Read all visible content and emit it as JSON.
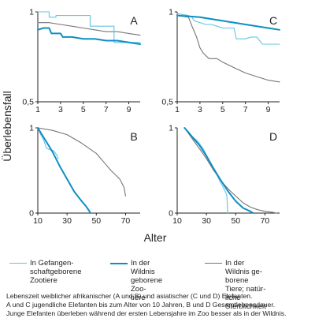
{
  "figure": {
    "ylabel": "Überlebensfall",
    "xlabel": "Alter",
    "colors": {
      "zoo": "#5fc6e3",
      "wild": "#0f8ec4",
      "wild_natural": "#767676",
      "axis": "#222222"
    }
  },
  "legend": [
    {
      "label": "In Gefangen-\nschaftgeborene\nZootiere",
      "color": "#5fc6e3",
      "width": 1
    },
    {
      "label": "In der Wildnis\ngeborene Zoo-\ntiere",
      "color": "#0f8ec4",
      "width": 2
    },
    {
      "label": "In der Wildnis ge-\nborene Tiere; natür-\nliche Sterblichkeit",
      "color": "#767676",
      "width": 1
    }
  ],
  "caption": [
    "Lebenszeit weiblicher afrikanischer (A und B) und asiatischer (C und D) Elefanten.",
    "A und C jugendliche Elefanten bis zum Alter von 10 Jahren, B und D Gesamtlebensdauer.",
    "Junge Elefanten überleben während der ersten Lebensjahre im Zoo besser als in der Wildnis."
  ],
  "chart_data": [
    {
      "panel": "A",
      "type": "line",
      "xlim": [
        1,
        10
      ],
      "ylim": [
        0.5,
        1
      ],
      "xticks": [
        "1",
        "3",
        "5",
        "7",
        "9"
      ],
      "yticks": [
        "0,5",
        "1"
      ],
      "series": [
        {
          "key": "zoo",
          "points": [
            [
              1,
              1
            ],
            [
              2,
              1
            ],
            [
              2,
              0.97
            ],
            [
              2.6,
              0.97
            ],
            [
              2.6,
              0.98
            ],
            [
              5.6,
              0.98
            ],
            [
              5.6,
              0.92
            ],
            [
              7.7,
              0.92
            ],
            [
              7.7,
              0.83
            ],
            [
              10,
              0.83
            ]
          ]
        },
        {
          "key": "wild",
          "points": [
            [
              1,
              0.9
            ],
            [
              1.5,
              0.91
            ],
            [
              2,
              0.91
            ],
            [
              2.2,
              0.88
            ],
            [
              3,
              0.88
            ],
            [
              3.2,
              0.86
            ],
            [
              4,
              0.86
            ],
            [
              5,
              0.85
            ],
            [
              6,
              0.85
            ],
            [
              7,
              0.84
            ],
            [
              8,
              0.84
            ],
            [
              9,
              0.83
            ],
            [
              10,
              0.82
            ]
          ]
        },
        {
          "key": "wild_natural",
          "points": [
            [
              1,
              0.94
            ],
            [
              2,
              0.94
            ],
            [
              3,
              0.93
            ],
            [
              4,
              0.92
            ],
            [
              5,
              0.91
            ],
            [
              6,
              0.9
            ],
            [
              7,
              0.89
            ],
            [
              8,
              0.89
            ],
            [
              9,
              0.88
            ],
            [
              10,
              0.87
            ]
          ]
        }
      ]
    },
    {
      "panel": "B",
      "type": "line",
      "xlim": [
        10,
        80
      ],
      "ylim": [
        0,
        1
      ],
      "xticks": [
        "10",
        "30",
        "50",
        "70"
      ],
      "yticks": [
        "0",
        "1"
      ],
      "series": [
        {
          "key": "zoo",
          "points": [
            [
              10,
              1
            ],
            [
              12,
              0.92
            ],
            [
              14,
              0.86
            ],
            [
              16,
              0.76
            ],
            [
              19,
              0.74
            ],
            [
              21,
              0.73
            ],
            [
              23,
              0.68
            ],
            [
              24,
              0.64
            ]
          ]
        },
        {
          "key": "wild",
          "points": [
            [
              10,
              1
            ],
            [
              15,
              0.86
            ],
            [
              20,
              0.72
            ],
            [
              25,
              0.55
            ],
            [
              30,
              0.4
            ],
            [
              35,
              0.25
            ],
            [
              40,
              0.14
            ],
            [
              43,
              0.08
            ],
            [
              45,
              0.03
            ],
            [
              46,
              0
            ]
          ]
        },
        {
          "key": "wild_natural",
          "points": [
            [
              10,
              1
            ],
            [
              20,
              0.97
            ],
            [
              30,
              0.92
            ],
            [
              40,
              0.82
            ],
            [
              50,
              0.7
            ],
            [
              55,
              0.6
            ],
            [
              60,
              0.5
            ],
            [
              63,
              0.45
            ],
            [
              66,
              0.4
            ],
            [
              69,
              0.3
            ],
            [
              70,
              0.2
            ]
          ]
        }
      ]
    },
    {
      "panel": "C",
      "type": "line",
      "xlim": [
        1,
        10
      ],
      "ylim": [
        0.5,
        1
      ],
      "xticks": [
        "1",
        "3",
        "5",
        "7",
        "9"
      ],
      "yticks": [
        "0,5",
        "1"
      ],
      "series": [
        {
          "key": "zoo",
          "points": [
            [
              1,
              0.99
            ],
            [
              2,
              0.98
            ],
            [
              2.3,
              0.97
            ],
            [
              2.5,
              0.95
            ],
            [
              3,
              0.94
            ],
            [
              3.5,
              0.93
            ],
            [
              4,
              0.93
            ],
            [
              4.5,
              0.92
            ],
            [
              5,
              0.91
            ],
            [
              6,
              0.91
            ],
            [
              6.2,
              0.85
            ],
            [
              7,
              0.85
            ],
            [
              7.5,
              0.86
            ],
            [
              8,
              0.86
            ],
            [
              8.5,
              0.82
            ],
            [
              10,
              0.82
            ]
          ]
        },
        {
          "key": "wild",
          "points": [
            [
              1,
              0.98
            ],
            [
              3,
              0.97
            ],
            [
              5,
              0.95
            ],
            [
              7,
              0.93
            ],
            [
              9,
              0.91
            ],
            [
              10,
              0.9
            ]
          ]
        },
        {
          "key": "wild_natural",
          "points": [
            [
              1,
              0.98
            ],
            [
              2,
              0.97
            ],
            [
              2.3,
              0.92
            ],
            [
              2.7,
              0.86
            ],
            [
              3,
              0.8
            ],
            [
              3.3,
              0.77
            ],
            [
              3.8,
              0.74
            ],
            [
              4.5,
              0.74
            ],
            [
              5,
              0.72
            ],
            [
              6,
              0.69
            ],
            [
              7,
              0.66
            ],
            [
              8,
              0.64
            ],
            [
              9,
              0.62
            ],
            [
              10,
              0.61
            ]
          ]
        }
      ]
    },
    {
      "panel": "D",
      "type": "line",
      "xlim": [
        10,
        80
      ],
      "ylim": [
        0,
        1
      ],
      "xticks": [
        "10",
        "30",
        "50",
        "70"
      ],
      "yticks": [
        "0",
        "1"
      ],
      "series": [
        {
          "key": "zoo",
          "points": [
            [
              15,
              1
            ],
            [
              18,
              0.95
            ],
            [
              20,
              0.9
            ],
            [
              23,
              0.86
            ],
            [
              25,
              0.82
            ],
            [
              28,
              0.75
            ],
            [
              31,
              0.65
            ],
            [
              34,
              0.55
            ],
            [
              37,
              0.45
            ],
            [
              40,
              0.35
            ],
            [
              43,
              0.25
            ],
            [
              44,
              0.2
            ],
            [
              44.5,
              0
            ]
          ]
        },
        {
          "key": "wild",
          "points": [
            [
              15,
              1
            ],
            [
              20,
              0.9
            ],
            [
              25,
              0.8
            ],
            [
              30,
              0.67
            ],
            [
              35,
              0.52
            ],
            [
              40,
              0.38
            ],
            [
              45,
              0.25
            ],
            [
              50,
              0.14
            ],
            [
              55,
              0.06
            ],
            [
              60,
              0.02
            ],
            [
              62,
              0
            ]
          ]
        },
        {
          "key": "wild_natural",
          "points": [
            [
              15,
              1
            ],
            [
              20,
              0.88
            ],
            [
              25,
              0.76
            ],
            [
              30,
              0.64
            ],
            [
              35,
              0.5
            ],
            [
              40,
              0.38
            ],
            [
              45,
              0.28
            ],
            [
              50,
              0.2
            ],
            [
              55,
              0.12
            ],
            [
              60,
              0.07
            ],
            [
              65,
              0.04
            ],
            [
              70,
              0.02
            ],
            [
              75,
              0.01
            ],
            [
              78,
              0
            ]
          ]
        }
      ]
    }
  ]
}
